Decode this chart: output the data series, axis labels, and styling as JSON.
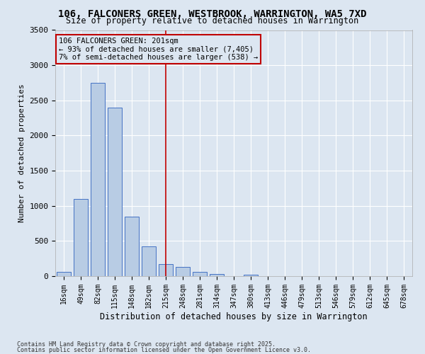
{
  "title": "106, FALCONERS GREEN, WESTBROOK, WARRINGTON, WA5 7XD",
  "subtitle": "Size of property relative to detached houses in Warrington",
  "xlabel": "Distribution of detached houses by size in Warrington",
  "ylabel": "Number of detached properties",
  "footnote1": "Contains HM Land Registry data © Crown copyright and database right 2025.",
  "footnote2": "Contains public sector information licensed under the Open Government Licence v3.0.",
  "categories": [
    "16sqm",
    "49sqm",
    "82sqm",
    "115sqm",
    "148sqm",
    "182sqm",
    "215sqm",
    "248sqm",
    "281sqm",
    "314sqm",
    "347sqm",
    "380sqm",
    "413sqm",
    "446sqm",
    "479sqm",
    "513sqm",
    "546sqm",
    "579sqm",
    "612sqm",
    "645sqm",
    "678sqm"
  ],
  "values": [
    60,
    1100,
    2750,
    2400,
    850,
    420,
    175,
    130,
    60,
    30,
    0,
    20,
    0,
    0,
    0,
    0,
    0,
    0,
    0,
    0,
    0
  ],
  "bar_color": "#b8cce4",
  "bar_edge_color": "#4472c4",
  "bg_color": "#dce6f1",
  "grid_color": "#ffffff",
  "annotation_text": "106 FALCONERS GREEN: 201sqm\n← 93% of detached houses are smaller (7,405)\n7% of semi-detached houses are larger (538) →",
  "vline_x": 6.0,
  "vline_color": "#c00000",
  "annotation_box_color": "#c00000",
  "ylim": [
    0,
    3500
  ],
  "yticks": [
    0,
    500,
    1000,
    1500,
    2000,
    2500,
    3000,
    3500
  ]
}
